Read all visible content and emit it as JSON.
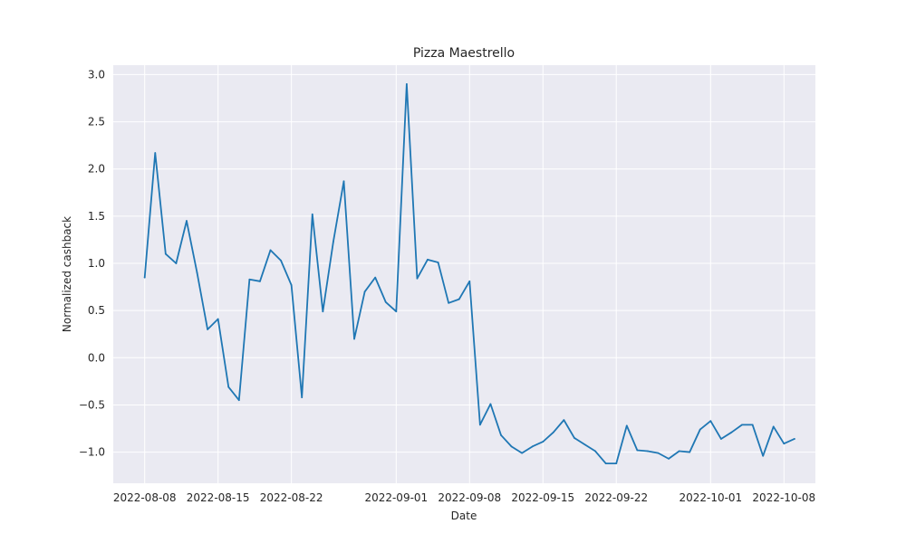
{
  "chart_data": {
    "type": "line",
    "title": "Pizza Maestrello",
    "xlabel": "Date",
    "ylabel": "Normalized cashback",
    "x_range": [
      "2022-08-05",
      "2022-10-11"
    ],
    "ylim": [
      -1.33,
      3.1
    ],
    "x_ticks": [
      "2022-08-08",
      "2022-08-15",
      "2022-08-22",
      "2022-09-01",
      "2022-09-08",
      "2022-09-15",
      "2022-09-22",
      "2022-10-01",
      "2022-10-08"
    ],
    "y_ticks": [
      -1.0,
      -0.5,
      0.0,
      0.5,
      1.0,
      1.5,
      2.0,
      2.5,
      3.0
    ],
    "y_tick_labels": [
      "−1.0",
      "−0.5",
      "0.0",
      "0.5",
      "1.0",
      "1.5",
      "2.0",
      "2.5",
      "3.0"
    ],
    "grid": true,
    "background": "#eaeaf2",
    "series": [
      {
        "color": "#1f77b4",
        "x": [
          "2022-08-08",
          "2022-08-09",
          "2022-08-10",
          "2022-08-11",
          "2022-08-12",
          "2022-08-13",
          "2022-08-14",
          "2022-08-15",
          "2022-08-16",
          "2022-08-17",
          "2022-08-18",
          "2022-08-19",
          "2022-08-20",
          "2022-08-21",
          "2022-08-22",
          "2022-08-23",
          "2022-08-24",
          "2022-08-25",
          "2022-08-26",
          "2022-08-27",
          "2022-08-28",
          "2022-08-29",
          "2022-08-30",
          "2022-08-31",
          "2022-09-01",
          "2022-09-02",
          "2022-09-03",
          "2022-09-04",
          "2022-09-05",
          "2022-09-06",
          "2022-09-07",
          "2022-09-08",
          "2022-09-09",
          "2022-09-10",
          "2022-09-11",
          "2022-09-12",
          "2022-09-13",
          "2022-09-14",
          "2022-09-15",
          "2022-09-16",
          "2022-09-17",
          "2022-09-18",
          "2022-09-19",
          "2022-09-20",
          "2022-09-21",
          "2022-09-22",
          "2022-09-23",
          "2022-09-24",
          "2022-09-25",
          "2022-09-26",
          "2022-09-27",
          "2022-09-28",
          "2022-09-29",
          "2022-09-30",
          "2022-10-01",
          "2022-10-02",
          "2022-10-03",
          "2022-10-04",
          "2022-10-05",
          "2022-10-06",
          "2022-10-07",
          "2022-10-08",
          "2022-10-09"
        ],
        "y": [
          0.85,
          2.17,
          1.1,
          1.0,
          1.45,
          0.9,
          0.3,
          0.41,
          -0.31,
          -0.45,
          0.83,
          0.81,
          1.14,
          1.03,
          0.77,
          -0.42,
          1.52,
          0.49,
          1.23,
          1.87,
          0.2,
          0.7,
          0.85,
          0.59,
          0.49,
          2.9,
          0.84,
          1.04,
          1.01,
          0.58,
          0.62,
          0.81,
          -0.71,
          -0.49,
          -0.82,
          -0.94,
          -1.01,
          -0.94,
          -0.89,
          -0.79,
          -0.66,
          -0.85,
          -0.92,
          -0.99,
          -1.12,
          -1.12,
          -0.72,
          -0.98,
          -0.99,
          -1.01,
          -1.07,
          -0.99,
          -1.0,
          -0.76,
          -0.67,
          -0.86,
          -0.79,
          -0.71,
          -0.71,
          -1.04,
          -0.73,
          -0.91,
          -0.86
        ]
      }
    ]
  }
}
